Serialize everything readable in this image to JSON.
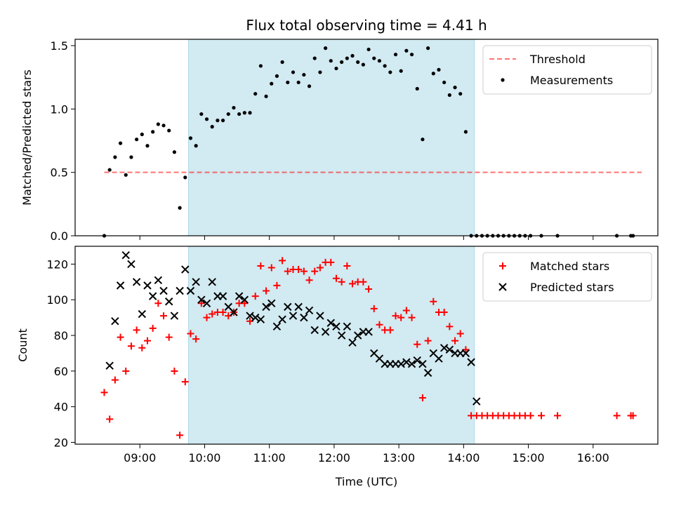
{
  "title": "Flux total observing time = 4.41 h",
  "colors": {
    "shade": "#add8e6",
    "threshold": "#ff0000",
    "measurement": "#000000",
    "matched": "#ff0000",
    "predicted": "#000000"
  },
  "chart_data": [
    {
      "type": "scatter",
      "ylabel": "Matched/Predicted stars",
      "xlim": [
        "08:00",
        "17:00"
      ],
      "ylim": [
        0,
        1.55
      ],
      "yticks": [
        0.0,
        0.5,
        1.0,
        1.5
      ],
      "ytick_labels": [
        "0.0",
        "0.5",
        "1.0",
        "1.5"
      ],
      "legend_position": "top-right",
      "shaded_interval": [
        "09:45",
        "14:10"
      ],
      "threshold": {
        "name": "Threshold",
        "y": 0.5,
        "x": [
          "08:27",
          "16:45"
        ]
      },
      "series": [
        {
          "name": "Measurements",
          "x": [
            "08:27",
            "08:32",
            "08:37",
            "08:42",
            "08:47",
            "08:52",
            "08:57",
            "09:02",
            "09:07",
            "09:12",
            "09:17",
            "09:22",
            "09:27",
            "09:32",
            "09:37",
            "09:42",
            "09:47",
            "09:52",
            "09:57",
            "10:02",
            "10:07",
            "10:12",
            "10:17",
            "10:22",
            "10:27",
            "10:32",
            "10:37",
            "10:42",
            "10:47",
            "10:52",
            "10:57",
            "11:02",
            "11:07",
            "11:12",
            "11:17",
            "11:22",
            "11:27",
            "11:32",
            "11:37",
            "11:42",
            "11:47",
            "11:52",
            "11:57",
            "12:02",
            "12:07",
            "12:12",
            "12:17",
            "12:22",
            "12:27",
            "12:32",
            "12:37",
            "12:42",
            "12:47",
            "12:52",
            "12:57",
            "13:02",
            "13:07",
            "13:12",
            "13:17",
            "13:22",
            "13:27",
            "13:32",
            "13:37",
            "13:42",
            "13:47",
            "13:52",
            "13:57",
            "14:02",
            "14:07",
            "14:12",
            "14:17",
            "14:22",
            "14:27",
            "14:32",
            "14:37",
            "14:42",
            "14:47",
            "14:52",
            "14:57",
            "15:02",
            "15:12",
            "15:27",
            "16:22",
            "16:35",
            "16:37"
          ],
          "y": [
            0.0,
            0.52,
            0.62,
            0.73,
            0.48,
            0.62,
            0.76,
            0.8,
            0.71,
            0.82,
            0.88,
            0.87,
            0.83,
            0.66,
            0.22,
            0.46,
            0.77,
            0.71,
            0.96,
            0.92,
            0.86,
            0.91,
            0.91,
            0.96,
            1.01,
            0.96,
            0.97,
            0.97,
            1.12,
            1.34,
            1.1,
            1.2,
            1.26,
            1.37,
            1.21,
            1.29,
            1.21,
            1.27,
            1.18,
            1.4,
            1.29,
            1.48,
            1.38,
            1.32,
            1.37,
            1.4,
            1.42,
            1.37,
            1.35,
            1.47,
            1.4,
            1.38,
            1.34,
            1.29,
            1.43,
            1.3,
            1.46,
            1.43,
            1.16,
            0.76,
            1.48,
            1.28,
            1.31,
            1.21,
            1.11,
            1.17,
            1.12,
            0.82,
            0.0,
            0.0,
            0.0,
            0.0,
            0.0,
            0.0,
            0.0,
            0.0,
            0.0,
            0.0,
            0.0,
            0.0,
            0.0,
            0.0,
            0.0,
            0.0,
            0.0
          ]
        }
      ]
    },
    {
      "type": "scatter",
      "xlabel": "Time (UTC)",
      "ylabel": "Count",
      "xlim": [
        "08:00",
        "17:00"
      ],
      "ylim": [
        19,
        130
      ],
      "yticks": [
        20,
        40,
        60,
        80,
        100,
        120
      ],
      "ytick_labels": [
        "20",
        "40",
        "60",
        "80",
        "100",
        "120"
      ],
      "xticks": [
        "09:00",
        "10:00",
        "11:00",
        "12:00",
        "13:00",
        "14:00",
        "15:00",
        "16:00"
      ],
      "xtick_labels": [
        "09:00",
        "10:00",
        "11:00",
        "12:00",
        "13:00",
        "14:00",
        "15:00",
        "16:00"
      ],
      "legend_position": "top-right",
      "shaded_interval": [
        "09:45",
        "14:10"
      ],
      "series": [
        {
          "name": "Matched stars",
          "marker": "plus",
          "x": [
            "08:27",
            "08:32",
            "08:37",
            "08:42",
            "08:47",
            "08:52",
            "08:57",
            "09:02",
            "09:07",
            "09:12",
            "09:17",
            "09:22",
            "09:27",
            "09:32",
            "09:37",
            "09:42",
            "09:47",
            "09:52",
            "09:57",
            "10:02",
            "10:07",
            "10:12",
            "10:17",
            "10:22",
            "10:27",
            "10:32",
            "10:37",
            "10:42",
            "10:47",
            "10:52",
            "10:57",
            "11:02",
            "11:07",
            "11:12",
            "11:17",
            "11:22",
            "11:27",
            "11:32",
            "11:37",
            "11:42",
            "11:47",
            "11:52",
            "11:57",
            "12:02",
            "12:07",
            "12:12",
            "12:17",
            "12:22",
            "12:27",
            "12:32",
            "12:37",
            "12:42",
            "12:47",
            "12:52",
            "12:57",
            "13:02",
            "13:07",
            "13:12",
            "13:17",
            "13:22",
            "13:27",
            "13:32",
            "13:37",
            "13:42",
            "13:47",
            "13:52",
            "13:57",
            "14:02",
            "14:07",
            "14:12",
            "14:17",
            "14:22",
            "14:27",
            "14:32",
            "14:37",
            "14:42",
            "14:47",
            "14:52",
            "14:57",
            "15:02",
            "15:12",
            "15:27",
            "16:22",
            "16:35",
            "16:37"
          ],
          "y": [
            48,
            33,
            55,
            79,
            60,
            74,
            83,
            73,
            77,
            84,
            98,
            91,
            79,
            60,
            24,
            54,
            81,
            78,
            98,
            90,
            92,
            93,
            93,
            91,
            93,
            98,
            98,
            88,
            102,
            119,
            105,
            118,
            108,
            122,
            116,
            117,
            117,
            116,
            111,
            116,
            118,
            121,
            121,
            112,
            110,
            119,
            109,
            110,
            110,
            106,
            95,
            86,
            83,
            83,
            91,
            90,
            94,
            90,
            75,
            45,
            77,
            99,
            93,
            93,
            85,
            77,
            81,
            72,
            35,
            35,
            35,
            35,
            35,
            35,
            35,
            35,
            35,
            35,
            35,
            35,
            35,
            35,
            35,
            35,
            35
          ]
        },
        {
          "name": "Predicted stars",
          "marker": "x",
          "x": [
            "08:32",
            "08:37",
            "08:42",
            "08:47",
            "08:52",
            "08:57",
            "09:02",
            "09:07",
            "09:12",
            "09:17",
            "09:22",
            "09:27",
            "09:32",
            "09:37",
            "09:42",
            "09:47",
            "09:52",
            "09:57",
            "10:02",
            "10:07",
            "10:12",
            "10:17",
            "10:22",
            "10:27",
            "10:32",
            "10:37",
            "10:42",
            "10:47",
            "10:52",
            "10:57",
            "11:02",
            "11:07",
            "11:12",
            "11:17",
            "11:22",
            "11:27",
            "11:32",
            "11:37",
            "11:42",
            "11:47",
            "11:52",
            "11:57",
            "12:02",
            "12:07",
            "12:12",
            "12:17",
            "12:22",
            "12:27",
            "12:32",
            "12:37",
            "12:42",
            "12:47",
            "12:52",
            "12:57",
            "13:02",
            "13:07",
            "13:12",
            "13:17",
            "13:22",
            "13:27",
            "13:32",
            "13:37",
            "13:42",
            "13:47",
            "13:52",
            "13:57",
            "14:02",
            "14:07",
            "14:12"
          ],
          "y": [
            63,
            88,
            108,
            125,
            120,
            110,
            92,
            108,
            102,
            111,
            105,
            99,
            91,
            105,
            117,
            105,
            110,
            100,
            98,
            110,
            102,
            102,
            96,
            93,
            102,
            100,
            91,
            90,
            89,
            96,
            98,
            85,
            89,
            96,
            91,
            96,
            90,
            94,
            83,
            91,
            82,
            87,
            85,
            80,
            85,
            76,
            80,
            82,
            82,
            70,
            67,
            64,
            64,
            64,
            64,
            65,
            64,
            66,
            64,
            59,
            70,
            67,
            73,
            72,
            70,
            70,
            70,
            65,
            43
          ]
        }
      ]
    }
  ]
}
